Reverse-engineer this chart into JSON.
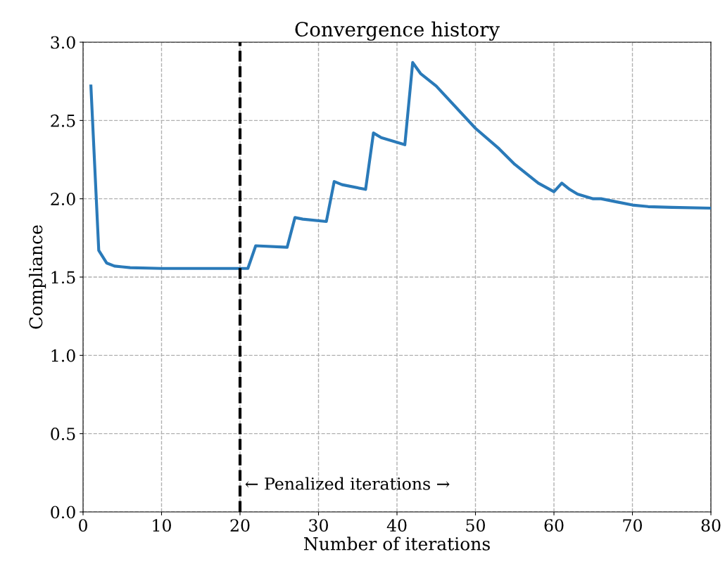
{
  "chart_data": {
    "type": "line",
    "title": "Convergence history",
    "xlabel": "Number of iterations",
    "ylabel": "Compliance",
    "series": [
      {
        "color": "#2a7ab9",
        "x": [
          1,
          2,
          3,
          4,
          5,
          6,
          10,
          20,
          21,
          22,
          26,
          27,
          28,
          31,
          32,
          33,
          36,
          37,
          38,
          41,
          42,
          43,
          45,
          50,
          53,
          55,
          58,
          60,
          61,
          62,
          63,
          65,
          66,
          68,
          70,
          72,
          75,
          80
        ],
        "values": [
          2.72,
          1.67,
          1.59,
          1.57,
          1.565,
          1.56,
          1.555,
          1.555,
          1.555,
          1.7,
          1.69,
          1.88,
          1.87,
          1.855,
          2.11,
          2.09,
          2.06,
          2.42,
          2.39,
          2.345,
          2.87,
          2.8,
          2.72,
          2.45,
          2.32,
          2.22,
          2.1,
          2.045,
          2.1,
          2.06,
          2.03,
          2.0,
          2.0,
          1.98,
          1.96,
          1.95,
          1.945,
          1.94
        ]
      }
    ],
    "xlim": [
      0,
      80
    ],
    "ylim": [
      0,
      3.0
    ],
    "xticks": [
      0,
      10,
      20,
      30,
      40,
      50,
      60,
      70,
      80
    ],
    "yticks": [
      {
        "value": 0,
        "label": "0.0"
      },
      {
        "value": 0.5,
        "label": "0.5"
      },
      {
        "value": 1.0,
        "label": "1.0"
      },
      {
        "value": 1.5,
        "label": "1.5"
      },
      {
        "value": 2.0,
        "label": "2.0"
      },
      {
        "value": 2.5,
        "label": "2.5"
      },
      {
        "value": 3.0,
        "label": "3.0"
      }
    ],
    "grid": true,
    "line_style": "solid",
    "marker": "none",
    "ref_lines": [
      {
        "axis": "x",
        "value": 20,
        "color": "#000000",
        "line_style": "dashed"
      }
    ],
    "annotations": [
      "← Penalized iterations →"
    ]
  }
}
